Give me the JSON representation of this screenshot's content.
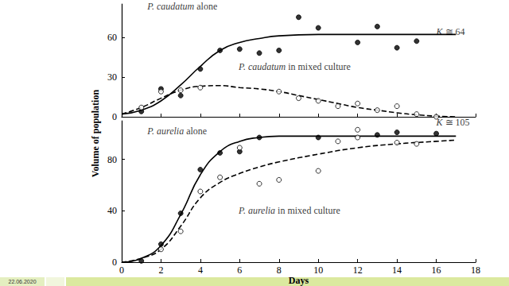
{
  "chart_data": [
    {
      "type": "scatter",
      "ylabel": "Volume of population",
      "xlim": [
        0,
        18
      ],
      "xticks": [
        0,
        2,
        4,
        6,
        8,
        10,
        12,
        14,
        16,
        18
      ],
      "ylim": [
        0,
        85
      ],
      "yticks": [
        0,
        30,
        60
      ],
      "tick_labels": "y",
      "series": [
        {
          "type": "scatter",
          "marker": "filled",
          "color": "#000000",
          "x": [
            1,
            2,
            3,
            4,
            5,
            6,
            7,
            8,
            9,
            10,
            12,
            13,
            14,
            15
          ],
          "values": [
            4,
            21,
            16,
            36,
            50,
            51,
            48,
            50,
            75,
            67,
            56,
            68,
            52,
            57
          ]
        },
        {
          "type": "scatter",
          "marker": "open",
          "color": "#000000",
          "x": [
            1,
            2,
            3,
            4,
            8,
            9,
            10,
            11,
            12,
            13,
            14,
            15,
            16
          ],
          "values": [
            7,
            19,
            20,
            22,
            19,
            14,
            12,
            8,
            10,
            5,
            8,
            2,
            0
          ]
        },
        {
          "type": "line",
          "line_style": "solid",
          "color": "#000000",
          "x": [
            0,
            1,
            2,
            3,
            4,
            5,
            6,
            7,
            8,
            10,
            12,
            14,
            17
          ],
          "values": [
            2,
            5,
            12,
            24,
            38,
            50,
            56,
            59,
            61,
            62,
            62,
            62,
            62
          ]
        },
        {
          "type": "line",
          "line_style": "dashed",
          "color": "#000000",
          "x": [
            0,
            1,
            2,
            3,
            4,
            5,
            6,
            7,
            8,
            9,
            10,
            11,
            12,
            13,
            14,
            15,
            16,
            17
          ],
          "values": [
            2,
            7,
            14,
            20,
            23,
            23.5,
            22,
            21,
            19,
            16,
            13,
            10,
            7,
            5,
            3,
            1.5,
            0.5,
            0
          ]
        }
      ],
      "annotations": [
        {
          "text": "P. caudatum alone",
          "x": 1.3,
          "y": 83
        },
        {
          "text": "K ≅ 64",
          "x": 16.0,
          "y": 64
        },
        {
          "text": "P. caudatum in mixed culture",
          "x": 5.95,
          "y": 38
        }
      ]
    },
    {
      "type": "scatter",
      "xlabel": "Days",
      "xlim": [
        0,
        18
      ],
      "xticks": [
        0,
        2,
        4,
        6,
        8,
        10,
        12,
        14,
        16,
        18
      ],
      "ylim": [
        0,
        110
      ],
      "yticks": [
        0,
        40,
        80
      ],
      "series": [
        {
          "type": "scatter",
          "marker": "filled",
          "color": "#000000",
          "x": [
            1,
            2,
            3,
            4,
            5,
            6,
            7,
            10,
            13,
            14,
            16
          ],
          "values": [
            1,
            14,
            38,
            72,
            85,
            86,
            97,
            97,
            99,
            101,
            100
          ]
        },
        {
          "type": "scatter",
          "marker": "open",
          "color": "#000000",
          "x": [
            2,
            3,
            4,
            5,
            6,
            7,
            8,
            10,
            11,
            12,
            12,
            14,
            15
          ],
          "values": [
            10,
            24,
            55,
            66,
            89,
            61,
            64,
            71,
            94,
            103,
            97,
            93,
            92
          ]
        },
        {
          "type": "line",
          "line_style": "solid",
          "color": "#000000",
          "x": [
            0,
            1,
            2,
            3,
            4,
            5,
            6,
            7,
            8,
            10,
            12,
            14,
            17
          ],
          "values": [
            0,
            3,
            13,
            37,
            68,
            86,
            94,
            97,
            98,
            98,
            98,
            98,
            98
          ]
        },
        {
          "type": "line",
          "line_style": "dashed",
          "color": "#000000",
          "x": [
            0,
            1,
            2,
            3,
            4,
            5,
            6,
            7,
            8,
            10,
            12,
            14,
            16,
            17
          ],
          "values": [
            0,
            3,
            10,
            28,
            50,
            62,
            69,
            74,
            78,
            84,
            89,
            92,
            94,
            95
          ]
        }
      ],
      "annotations": [
        {
          "text": "P. aurelia alone",
          "x": 1.3,
          "y": 102
        },
        {
          "text": "K ≅ 105",
          "x": 16.0,
          "y": 109
        },
        {
          "text": "P. aurelia in mixed culture",
          "x": 5.95,
          "y": 40
        }
      ]
    }
  ],
  "footer": "22.06.2020"
}
